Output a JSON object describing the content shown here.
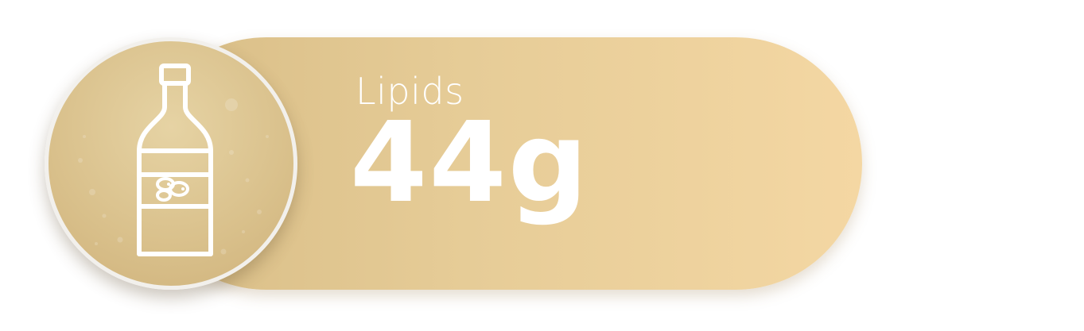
{
  "card": {
    "icon": "oil-bottle-icon",
    "label": "Lipids",
    "value": "44g"
  },
  "colors": {
    "pill_start": "#d8bd86",
    "pill_end": "#f4d7a3",
    "circle_fill": "#dcc38f",
    "circle_border": "#f2f0ec",
    "text": "#ffffff"
  }
}
